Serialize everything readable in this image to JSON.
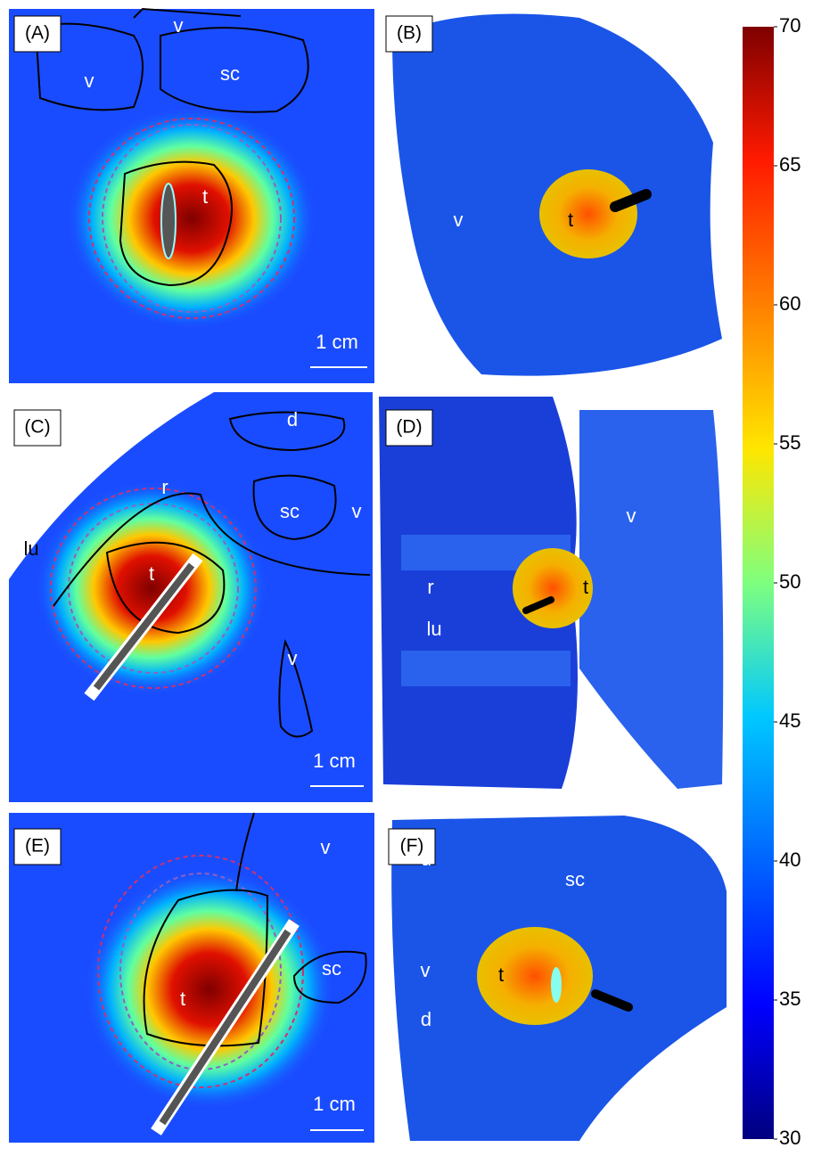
{
  "panels": [
    {
      "label": "(A)",
      "regions": [
        "v",
        "v",
        "sc",
        "t"
      ],
      "scale_bar": "1 cm"
    },
    {
      "label": "(B)",
      "regions": [
        "t",
        "v"
      ]
    },
    {
      "label": "(C)",
      "regions": [
        "d",
        "r",
        "sc",
        "v",
        "lu",
        "t",
        "v"
      ],
      "scale_bar": "1 cm"
    },
    {
      "label": "(D)",
      "regions": [
        "v",
        "r",
        "t",
        "lu"
      ]
    },
    {
      "label": "(E)",
      "regions": [
        "v",
        "sc",
        "t"
      ],
      "scale_bar": "1 cm"
    },
    {
      "label": "(F)",
      "regions": [
        "d",
        "sc",
        "v",
        "t",
        "d"
      ]
    }
  ],
  "colorbar": {
    "range": [
      30,
      70
    ],
    "ticks": [
      30,
      35,
      40,
      45,
      50,
      55,
      60,
      65,
      70
    ]
  }
}
